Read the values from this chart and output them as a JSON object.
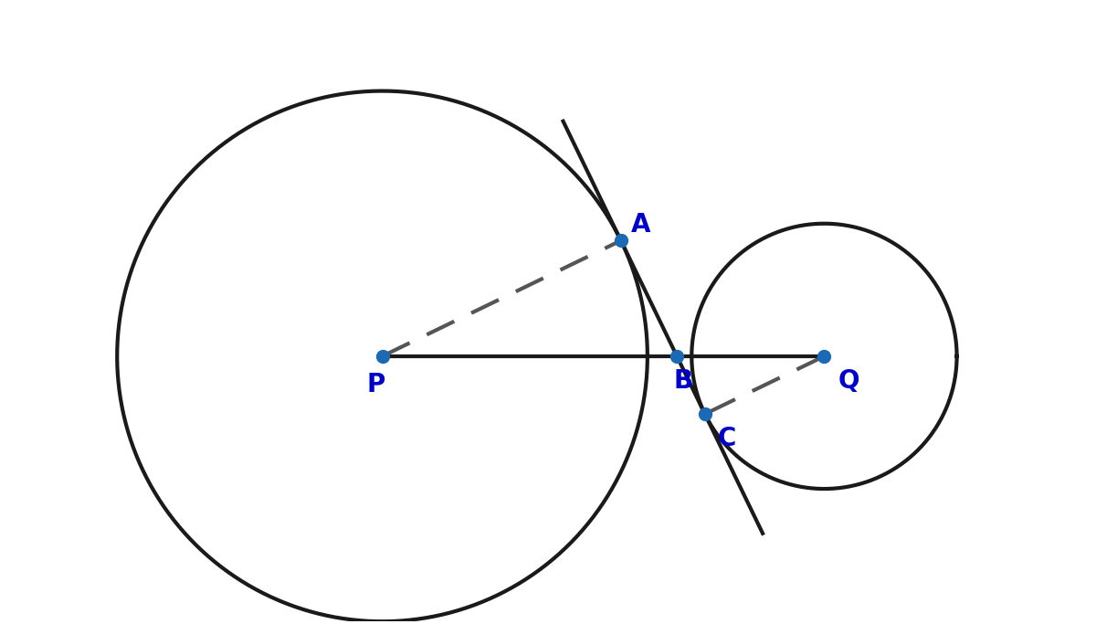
{
  "background_color": "#ffffff",
  "circle_color": "#1a1a1a",
  "line_color": "#1a1a1a",
  "dashed_color": "#555555",
  "point_color": "#1a6ab5",
  "label_color": "#0000cc",
  "label_fontsize": 20,
  "circle_linewidth": 3.0,
  "line_linewidth": 3.0,
  "dashed_linewidth": 3.0,
  "point_size": 100,
  "P": [
    3.5,
    4.5
  ],
  "r_P": 6.0,
  "Q": [
    13.5,
    4.5
  ],
  "r_Q": 3.0,
  "xlim": [
    -3.5,
    18.0
  ],
  "ylim": [
    -1.5,
    12.5
  ]
}
